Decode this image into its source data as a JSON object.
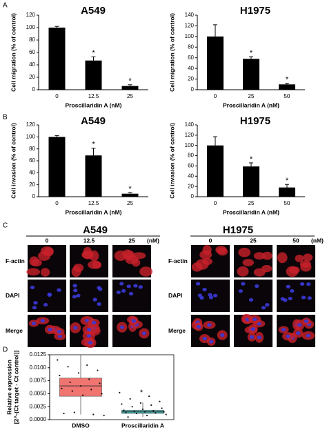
{
  "panel_labels": [
    "A",
    "B",
    "C",
    "D"
  ],
  "chart_data": [
    {
      "type": "bar",
      "title": "A549",
      "ylabel": "Cell migration (% of control)",
      "xlabel": "Proscillaridin A (nM)",
      "categories": [
        "0",
        "12.5",
        "25"
      ],
      "values": [
        100,
        47,
        6
      ],
      "errors": [
        2,
        6,
        2
      ],
      "markers": [
        null,
        "*",
        "*"
      ],
      "color": "#000000",
      "ylim": [
        0,
        120
      ],
      "yticks": [
        0,
        20,
        40,
        60,
        80,
        100,
        120
      ]
    },
    {
      "type": "bar",
      "title": "H1975",
      "ylabel": "Cell migration (% of control)",
      "xlabel": "Proscillaridin A (nM)",
      "categories": [
        "0",
        "25",
        "50"
      ],
      "values": [
        100,
        58,
        10
      ],
      "errors": [
        22,
        4,
        2
      ],
      "markers": [
        null,
        "*",
        "*"
      ],
      "color": "#000000",
      "ylim": [
        0,
        140
      ],
      "yticks": [
        0,
        20,
        40,
        60,
        80,
        100,
        120,
        140
      ]
    },
    {
      "type": "bar",
      "title": "A549",
      "ylabel": "Cell invasion (% of control)",
      "xlabel": "Proscillaridin A (nM)",
      "categories": [
        "0",
        "12.5",
        "25"
      ],
      "values": [
        100,
        69,
        5
      ],
      "errors": [
        2,
        12,
        2
      ],
      "markers": [
        null,
        "*",
        "*"
      ],
      "color": "#000000",
      "ylim": [
        0,
        120
      ],
      "yticks": [
        0,
        20,
        40,
        60,
        80,
        100,
        120
      ]
    },
    {
      "type": "bar",
      "title": "H1975",
      "ylabel": "Cell invasion (% of control)",
      "xlabel": "Proscillaridin A (nM)",
      "categories": [
        "0",
        "25",
        "50"
      ],
      "values": [
        100,
        59,
        18
      ],
      "errors": [
        17,
        7,
        6
      ],
      "markers": [
        null,
        "*",
        "*"
      ],
      "color": "#000000",
      "ylim": [
        0,
        140
      ],
      "yticks": [
        0,
        20,
        40,
        60,
        80,
        100,
        120,
        140
      ]
    },
    {
      "type": "box",
      "ylabel": [
        "Relative expression",
        "[2^-(Ct target - Ct control)]"
      ],
      "ylim": [
        0,
        0.0125
      ],
      "yticks": [
        {
          "value": 0,
          "label": "0.0000"
        },
        0.0025,
        {
          "value": 0.005,
          "label": "0.0050"
        },
        0.0075,
        {
          "value": 0.01,
          "label": "0.0100"
        },
        0.0125
      ],
      "series": [
        {
          "name": "DMSO",
          "color": "#f07470",
          "min": 0.001,
          "q1": 0.0045,
          "median": 0.0065,
          "q3": 0.008,
          "max": 0.0125,
          "points": [
            0.0115,
            0.0105,
            0.0102,
            0.0095,
            0.009,
            0.0085,
            0.0078,
            0.0072,
            0.007,
            0.0065,
            0.006,
            0.0058,
            0.0055,
            0.005,
            0.0047,
            0.0012,
            0.001,
            0.0014,
            0.0008
          ]
        },
        {
          "name": "Proscillaridin A",
          "color": "#40b0b0",
          "min": 0.0005,
          "q1": 0.0012,
          "median": 0.0015,
          "q3": 0.0018,
          "max": 0.0033,
          "marker": "*",
          "points": [
            0.0052,
            0.0045,
            0.004,
            0.0035,
            0.0032,
            0.003,
            0.0028,
            0.0025,
            0.0022,
            0.002,
            0.0018,
            0.0017,
            0.0016,
            0.0015,
            0.0015,
            0.0014,
            0.0013,
            0.0012,
            0.001,
            0.0008,
            0.0005
          ]
        }
      ]
    }
  ],
  "microscopy": [
    {
      "title": "A549",
      "doses": [
        "0",
        "12.5",
        "25"
      ],
      "unit": "(nM)",
      "rows": [
        "F-actin",
        "DAPI",
        "Merge"
      ]
    },
    {
      "title": "H1975",
      "doses": [
        "0",
        "25",
        "50"
      ],
      "unit": "(nM)",
      "rows": [
        "F-actin",
        "DAPI",
        "Merge"
      ]
    }
  ]
}
